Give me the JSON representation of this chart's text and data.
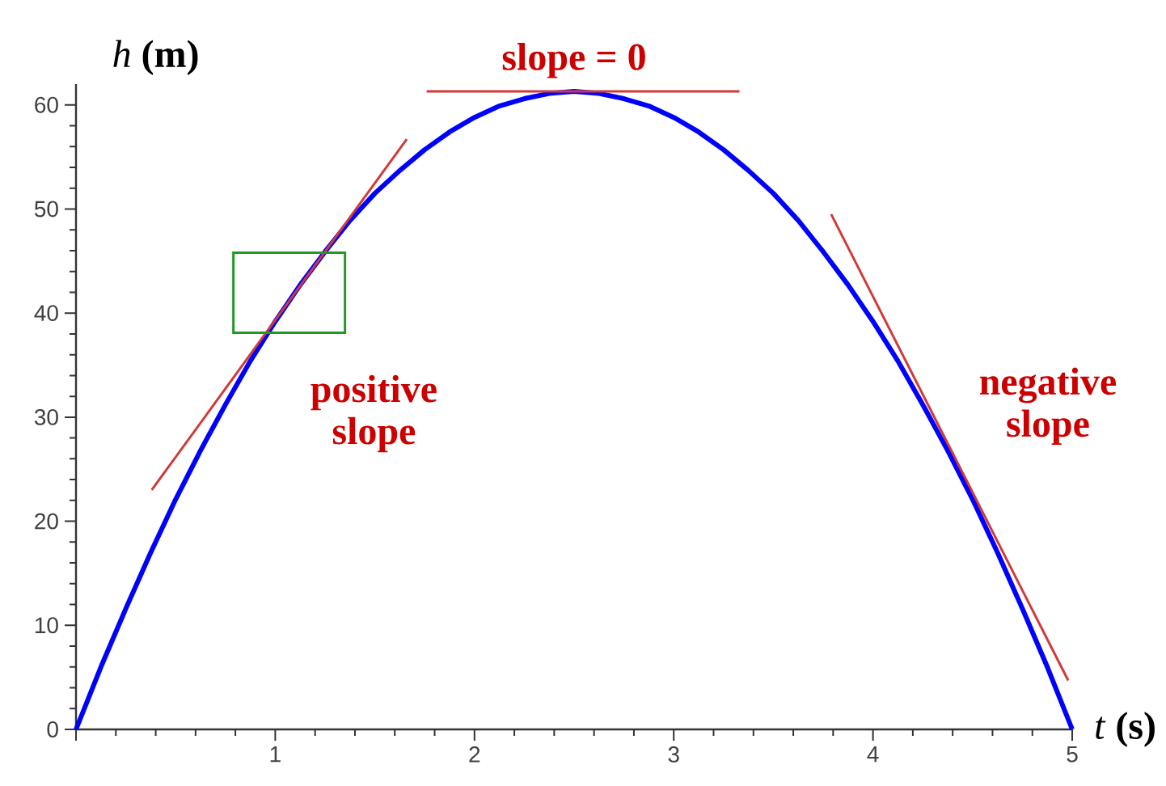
{
  "chart_data": {
    "type": "line",
    "xlabel": "*t* **(s)**",
    "ylabel": "*h* **(m)**",
    "xlim": [
      0,
      5
    ],
    "ylim": [
      0,
      62
    ],
    "xticks": [
      {
        "value": 0,
        "label": null
      },
      1,
      2,
      3,
      4,
      5
    ],
    "yticks": [
      0,
      10,
      20,
      30,
      40,
      50,
      60
    ],
    "series": [
      {
        "color": "#0000ff",
        "x": [
          0,
          0.125,
          0.25,
          0.375,
          0.5,
          0.625,
          0.75,
          0.875,
          1,
          1.125,
          1.25,
          1.375,
          1.5,
          1.625,
          1.75,
          1.875,
          2,
          2.125,
          2.25,
          2.375,
          2.5,
          2.625,
          2.75,
          2.875,
          3,
          3.125,
          3.25,
          3.375,
          3.5,
          3.625,
          3.75,
          3.875,
          4,
          4.125,
          4.25,
          4.375,
          4.5,
          4.625,
          4.75,
          4.875,
          5
        ],
        "values": [
          0,
          6.0,
          11.6,
          17.0,
          22.1,
          26.8,
          31.2,
          35.4,
          39.2,
          42.7,
          45.9,
          48.9,
          51.5,
          53.7,
          55.7,
          57.4,
          58.8,
          59.9,
          60.6,
          61.1,
          61.3,
          61.1,
          60.6,
          59.9,
          58.8,
          57.4,
          55.7,
          53.7,
          51.5,
          48.9,
          45.9,
          42.7,
          39.2,
          35.4,
          31.2,
          26.8,
          22.1,
          17.0,
          11.6,
          6.0,
          0
        ]
      },
      {
        "type": "line",
        "color": "#d03a3a",
        "x": [
          0.38,
          1.66
        ],
        "values": [
          23.0,
          56.7
        ]
      },
      {
        "type": "line",
        "color": "#d03a3a",
        "x": [
          1.76,
          3.33
        ],
        "values": [
          61.3,
          61.3
        ]
      },
      {
        "type": "line",
        "color": "#d03a3a",
        "x": [
          3.79,
          4.98
        ],
        "values": [
          49.5,
          4.7
        ]
      }
    ],
    "annotations": [
      {
        "text": "slope = 0",
        "x": 2.5,
        "y": 61.3
      },
      {
        "text": "positive slope",
        "x": 1,
        "y": 39.2
      },
      {
        "text": "negative slope",
        "x": 4.3,
        "y": 29.5
      }
    ]
  }
}
